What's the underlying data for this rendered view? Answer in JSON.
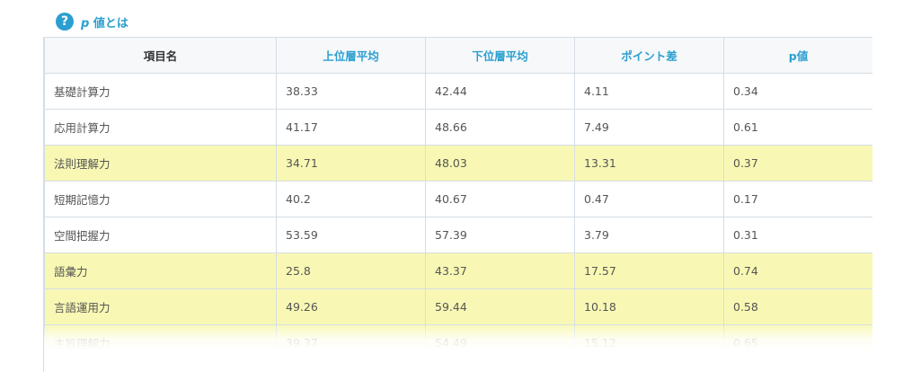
{
  "help": {
    "icon": "question-circle-icon",
    "p": "p",
    "label": "値とは"
  },
  "headers": [
    "項目名",
    "上位層平均",
    "下位層平均",
    "ポイント差",
    "p値"
  ],
  "highlight_color": "#f8f8b4",
  "rows": [
    {
      "name": "基礎計算力",
      "upper": "38.33",
      "lower": "42.44",
      "diff": "4.11",
      "p": "0.34",
      "highlight": false
    },
    {
      "name": "応用計算力",
      "upper": "41.17",
      "lower": "48.66",
      "diff": "7.49",
      "p": "0.61",
      "highlight": false
    },
    {
      "name": "法則理解力",
      "upper": "34.71",
      "lower": "48.03",
      "diff": "13.31",
      "p": "0.37",
      "highlight": true
    },
    {
      "name": "短期記憶力",
      "upper": "40.2",
      "lower": "40.67",
      "diff": "0.47",
      "p": "0.17",
      "highlight": false
    },
    {
      "name": "空間把握力",
      "upper": "53.59",
      "lower": "57.39",
      "diff": "3.79",
      "p": "0.31",
      "highlight": false
    },
    {
      "name": "語彙力",
      "upper": "25.8",
      "lower": "43.37",
      "diff": "17.57",
      "p": "0.74",
      "highlight": true
    },
    {
      "name": "言語運用力",
      "upper": "49.26",
      "lower": "59.44",
      "diff": "10.18",
      "p": "0.58",
      "highlight": true
    },
    {
      "name": "主旨理解力",
      "upper": "39.37",
      "lower": "54.49",
      "diff": "15.12",
      "p": "0.65",
      "highlight": true
    }
  ]
}
